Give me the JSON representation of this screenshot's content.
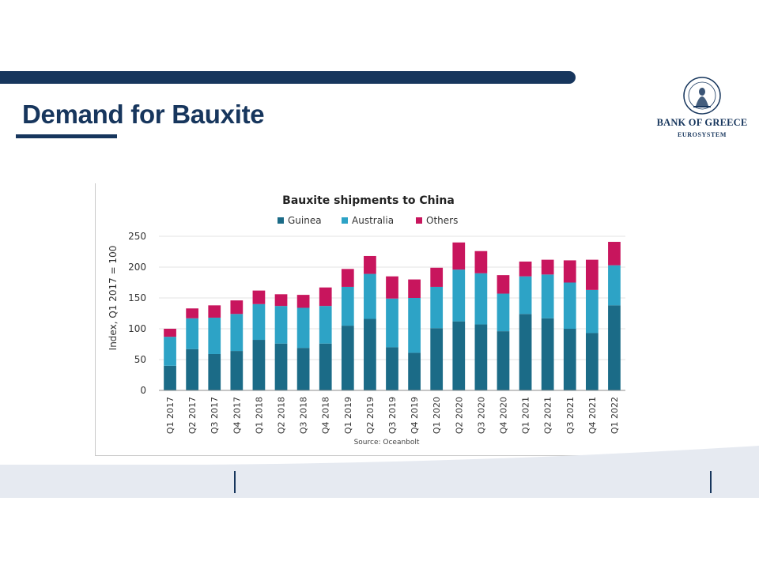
{
  "slide": {
    "title": "Demand for Bauxite"
  },
  "logo": {
    "name": "BANK OF GREECE",
    "subtitle": "EUROSYSTEM",
    "icon": "bank-of-greece-seal-icon"
  },
  "colors": {
    "navy": "#17365d",
    "guinea": "#1b6b87",
    "australia": "#2da3c6",
    "others": "#c8155d"
  },
  "chart_data": {
    "type": "bar",
    "stacked": true,
    "title": "Bauxite shipments to China",
    "ylabel": "Index, Q1 2017 = 100",
    "xlabel": "",
    "source": "Source: Oceanbolt",
    "ylim": [
      0,
      250
    ],
    "yticks": [
      0,
      50,
      100,
      150,
      200,
      250
    ],
    "grid": true,
    "legend": "top",
    "categories": [
      "Q1 2017",
      "Q2 2017",
      "Q3 2017",
      "Q4 2017",
      "Q1 2018",
      "Q2 2018",
      "Q3 2018",
      "Q4 2018",
      "Q1 2019",
      "Q2 2019",
      "Q3 2019",
      "Q4 2019",
      "Q1 2020",
      "Q2 2020",
      "Q3 2020",
      "Q4 2020",
      "Q1 2021",
      "Q2 2021",
      "Q3 2021",
      "Q4 2021",
      "Q1 2022"
    ],
    "series": [
      {
        "name": "Guinea",
        "values": [
          40,
          67,
          59,
          64,
          82,
          76,
          69,
          76,
          105,
          116,
          70,
          61,
          101,
          112,
          107,
          96,
          124,
          117,
          100,
          93,
          138
        ]
      },
      {
        "name": "Australia",
        "values": [
          47,
          50,
          59,
          60,
          58,
          61,
          65,
          61,
          63,
          73,
          79,
          89,
          67,
          84,
          83,
          61,
          61,
          71,
          75,
          70,
          65
        ]
      },
      {
        "name": "Others",
        "values": [
          13,
          16,
          20,
          22,
          22,
          19,
          21,
          30,
          29,
          29,
          36,
          30,
          31,
          44,
          36,
          30,
          24,
          24,
          36,
          49,
          38
        ]
      }
    ]
  }
}
